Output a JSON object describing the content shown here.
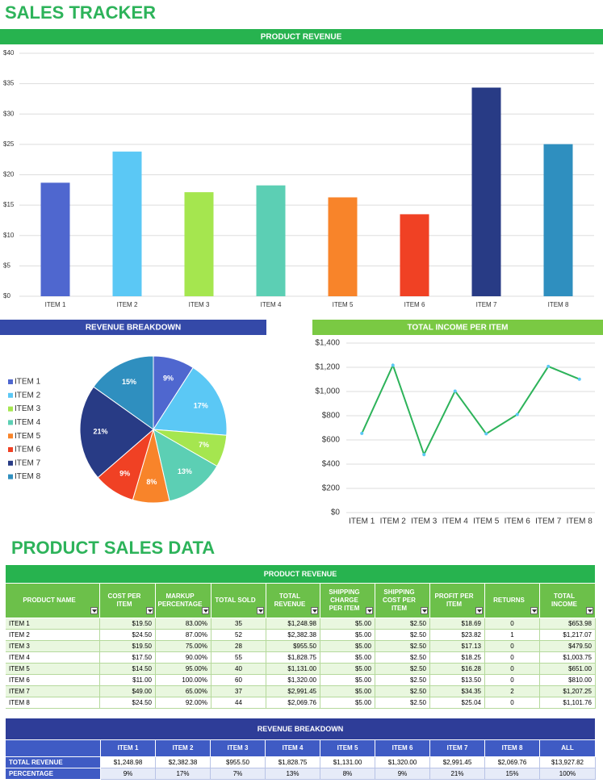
{
  "title": "SALES TRACKER",
  "chart_data": [
    {
      "type": "bar",
      "title": "PRODUCT REVENUE",
      "categories": [
        "ITEM 1",
        "ITEM 2",
        "ITEM 3",
        "ITEM 4",
        "ITEM 5",
        "ITEM 6",
        "ITEM 7",
        "ITEM 8"
      ],
      "values": [
        18.69,
        23.82,
        17.13,
        18.25,
        16.28,
        13.5,
        34.35,
        25.04
      ],
      "colors": [
        "#4f67cf",
        "#5bc8f5",
        "#a5e64f",
        "#5ccfb4",
        "#f8842a",
        "#f04124",
        "#283b85",
        "#2f8fbf"
      ],
      "ylim": [
        0,
        40
      ],
      "yticks": [
        {
          "value": 0,
          "label": "$0"
        },
        {
          "value": 5,
          "label": "$5"
        },
        {
          "value": 10,
          "label": "$10"
        },
        {
          "value": 15,
          "label": "$15"
        },
        {
          "value": 20,
          "label": "$20"
        },
        {
          "value": 25,
          "label": "$25"
        },
        {
          "value": 30,
          "label": "$30"
        },
        {
          "value": 35,
          "label": "$35"
        },
        {
          "value": 40,
          "label": "$40"
        }
      ],
      "grid": true
    },
    {
      "type": "pie",
      "title": "REVENUE BREAKDOWN",
      "categories": [
        "ITEM 1",
        "ITEM 2",
        "ITEM 3",
        "ITEM 4",
        "ITEM 5",
        "ITEM 6",
        "ITEM 7",
        "ITEM 8"
      ],
      "values": [
        9,
        17,
        7,
        13,
        8,
        9,
        21,
        15
      ],
      "value_labels": [
        "9%",
        "17%",
        "7%",
        "13%",
        "8%",
        "9%",
        "21%",
        "15%"
      ],
      "colors": [
        "#4f67cf",
        "#5bc8f5",
        "#a5e64f",
        "#5ccfb4",
        "#f8842a",
        "#f04124",
        "#283b85",
        "#2f8fbf"
      ],
      "legend": "left"
    },
    {
      "type": "line",
      "title": "TOTAL INCOME PER ITEM",
      "categories": [
        "ITEM 1",
        "ITEM 2",
        "ITEM 3",
        "ITEM 4",
        "ITEM 5",
        "ITEM 6",
        "ITEM 7",
        "ITEM 8"
      ],
      "values": [
        653.98,
        1217.07,
        479.5,
        1003.75,
        651.0,
        810.0,
        1207.25,
        1101.76
      ],
      "color": "#2db35a",
      "ylim": [
        0,
        1400
      ],
      "yticks": [
        {
          "value": 0,
          "label": "$0"
        },
        {
          "value": 200,
          "label": "$200"
        },
        {
          "value": 400,
          "label": "$400"
        },
        {
          "value": 600,
          "label": "$600"
        },
        {
          "value": 800,
          "label": "$800"
        },
        {
          "value": 1000,
          "label": "$1,000"
        },
        {
          "value": 1200,
          "label": "$1,200"
        },
        {
          "value": 1400,
          "label": "$1,400"
        }
      ],
      "grid": true
    }
  ],
  "section_title": "PRODUCT SALES DATA",
  "sales_table": {
    "title": "PRODUCT REVENUE",
    "columns": [
      "PRODUCT NAME",
      "COST PER ITEM",
      "MARKUP PERCENTAGE",
      "TOTAL SOLD",
      "TOTAL REVENUE",
      "SHIPPING CHARGE PER ITEM",
      "SHIPPING COST PER ITEM",
      "PROFIT PER ITEM",
      "RETURNS",
      "TOTAL INCOME"
    ],
    "rows": [
      [
        "ITEM 1",
        "$19.50",
        "83.00%",
        "35",
        "$1,248.98",
        "$5.00",
        "$2.50",
        "$18.69",
        "0",
        "$653.98"
      ],
      [
        "ITEM 2",
        "$24.50",
        "87.00%",
        "52",
        "$2,382.38",
        "$5.00",
        "$2.50",
        "$23.82",
        "1",
        "$1,217.07"
      ],
      [
        "ITEM 3",
        "$19.50",
        "75.00%",
        "28",
        "$955.50",
        "$5.00",
        "$2.50",
        "$17.13",
        "0",
        "$479.50"
      ],
      [
        "ITEM 4",
        "$17.50",
        "90.00%",
        "55",
        "$1,828.75",
        "$5.00",
        "$2.50",
        "$18.25",
        "0",
        "$1,003.75"
      ],
      [
        "ITEM 5",
        "$14.50",
        "95.00%",
        "40",
        "$1,131.00",
        "$5.00",
        "$2.50",
        "$16.28",
        "0",
        "$651.00"
      ],
      [
        "ITEM 6",
        "$11.00",
        "100.00%",
        "60",
        "$1,320.00",
        "$5.00",
        "$2.50",
        "$13.50",
        "0",
        "$810.00"
      ],
      [
        "ITEM 7",
        "$49.00",
        "65.00%",
        "37",
        "$2,991.45",
        "$5.00",
        "$2.50",
        "$34.35",
        "2",
        "$1,207.25"
      ],
      [
        "ITEM 8",
        "$24.50",
        "92.00%",
        "44",
        "$2,069.76",
        "$5.00",
        "$2.50",
        "$25.04",
        "0",
        "$1,101.76"
      ]
    ]
  },
  "breakdown_table": {
    "title": "REVENUE BREAKDOWN",
    "columns": [
      "ITEM 1",
      "ITEM 2",
      "ITEM 3",
      "ITEM 4",
      "ITEM 5",
      "ITEM 6",
      "ITEM 7",
      "ITEM 8",
      "ALL"
    ],
    "rows": [
      {
        "label": "TOTAL REVENUE",
        "cells": [
          "$1,248.98",
          "$2,382.38",
          "$955.50",
          "$1,828.75",
          "$1,131.00",
          "$1,320.00",
          "$2,991.45",
          "$2,069.76",
          "$13,927.82"
        ]
      },
      {
        "label": "PERCENTAGE",
        "cells": [
          "9%",
          "17%",
          "7%",
          "13%",
          "8%",
          "9%",
          "21%",
          "15%",
          "100%"
        ]
      }
    ]
  }
}
